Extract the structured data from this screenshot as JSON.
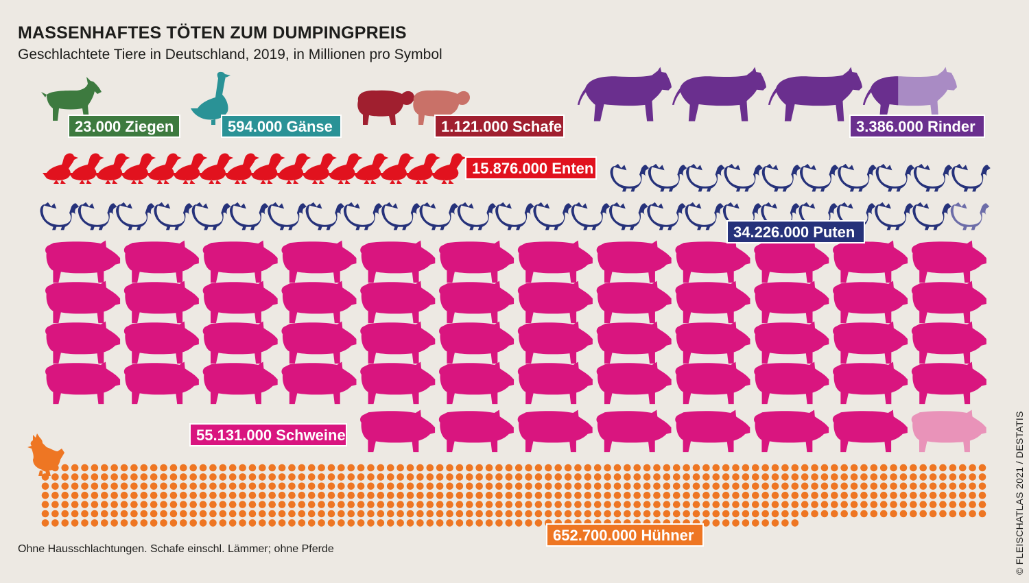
{
  "header": {
    "title": "MASSENHAFTES TÖTEN ZUM DUMPINGPREIS",
    "subtitle": "Geschlachtete Tiere in Deutschland, 2019, in Millionen pro Symbol"
  },
  "footnote": "Ohne Hausschlachtungen. Schafe einschl. Lämmer; ohne Pferde",
  "source": "© FLEISCHATLAS 2021 / DESTATIS",
  "chart_data": {
    "type": "pictogram",
    "unit_per_symbol": 1000000,
    "series": [
      {
        "name": "Ziegen",
        "value": 23000,
        "label": "23.000 Ziegen",
        "color": "#3d7a3f",
        "fade_color": "#8fa886",
        "icon": "goat-icon"
      },
      {
        "name": "Gänse",
        "value": 594000,
        "label": "594.000 Gänse",
        "color": "#2a9296",
        "fade_color": "#9ccacb",
        "icon": "goose-icon"
      },
      {
        "name": "Schafe",
        "value": 1121000,
        "label": "1.121.000 Schafe",
        "color": "#a01f2f",
        "fade_color": "#c97168",
        "icon": "sheep-icon"
      },
      {
        "name": "Rinder",
        "value": 3386000,
        "label": "3.386.000 Rinder",
        "color": "#6a2f8e",
        "fade_color": "#a98bc4",
        "icon": "cow-icon"
      },
      {
        "name": "Enten",
        "value": 15876000,
        "label": "15.876.000 Enten",
        "color": "#e1121e",
        "fade_color": "#f0a48c",
        "icon": "duck-icon"
      },
      {
        "name": "Puten",
        "value": 34226000,
        "label": "34.226.000 Puten",
        "color": "#26327a",
        "fade_color": "#6d6da8",
        "icon": "turkey-icon"
      },
      {
        "name": "Schweine",
        "value": 55131000,
        "label": "55.131.000 Schweine",
        "color": "#d9157f",
        "fade_color": "#e993b9",
        "icon": "pig-icon"
      },
      {
        "name": "Hühner",
        "value": 652700000,
        "label": "652.700.000 Hühner",
        "color": "#ee7623",
        "fade_color": "#f5b07a",
        "icon": "chicken-icon"
      }
    ]
  }
}
